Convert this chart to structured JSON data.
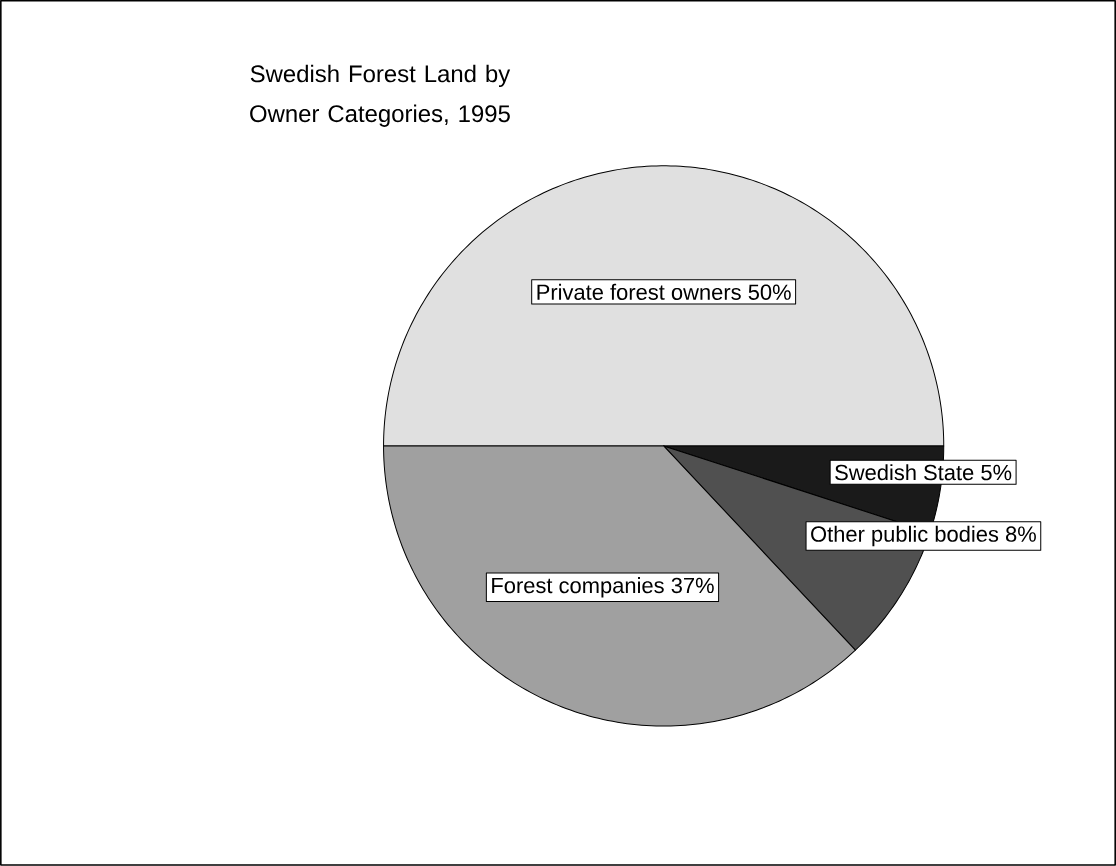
{
  "chart_data": {
    "type": "pie",
    "title": "Swedish Forest Land by Owner Categories, 1995",
    "categories": [
      "Private forest owners",
      "Swedish State",
      "Other public bodies",
      "Forest companies"
    ],
    "values": [
      50,
      5,
      8,
      37
    ],
    "value_labels": [
      "50%",
      "5%",
      "8%",
      "37%"
    ],
    "colors": [
      "#e0e0e0",
      "#1a1a1a",
      "#505050",
      "#a0a0a0"
    ]
  }
}
